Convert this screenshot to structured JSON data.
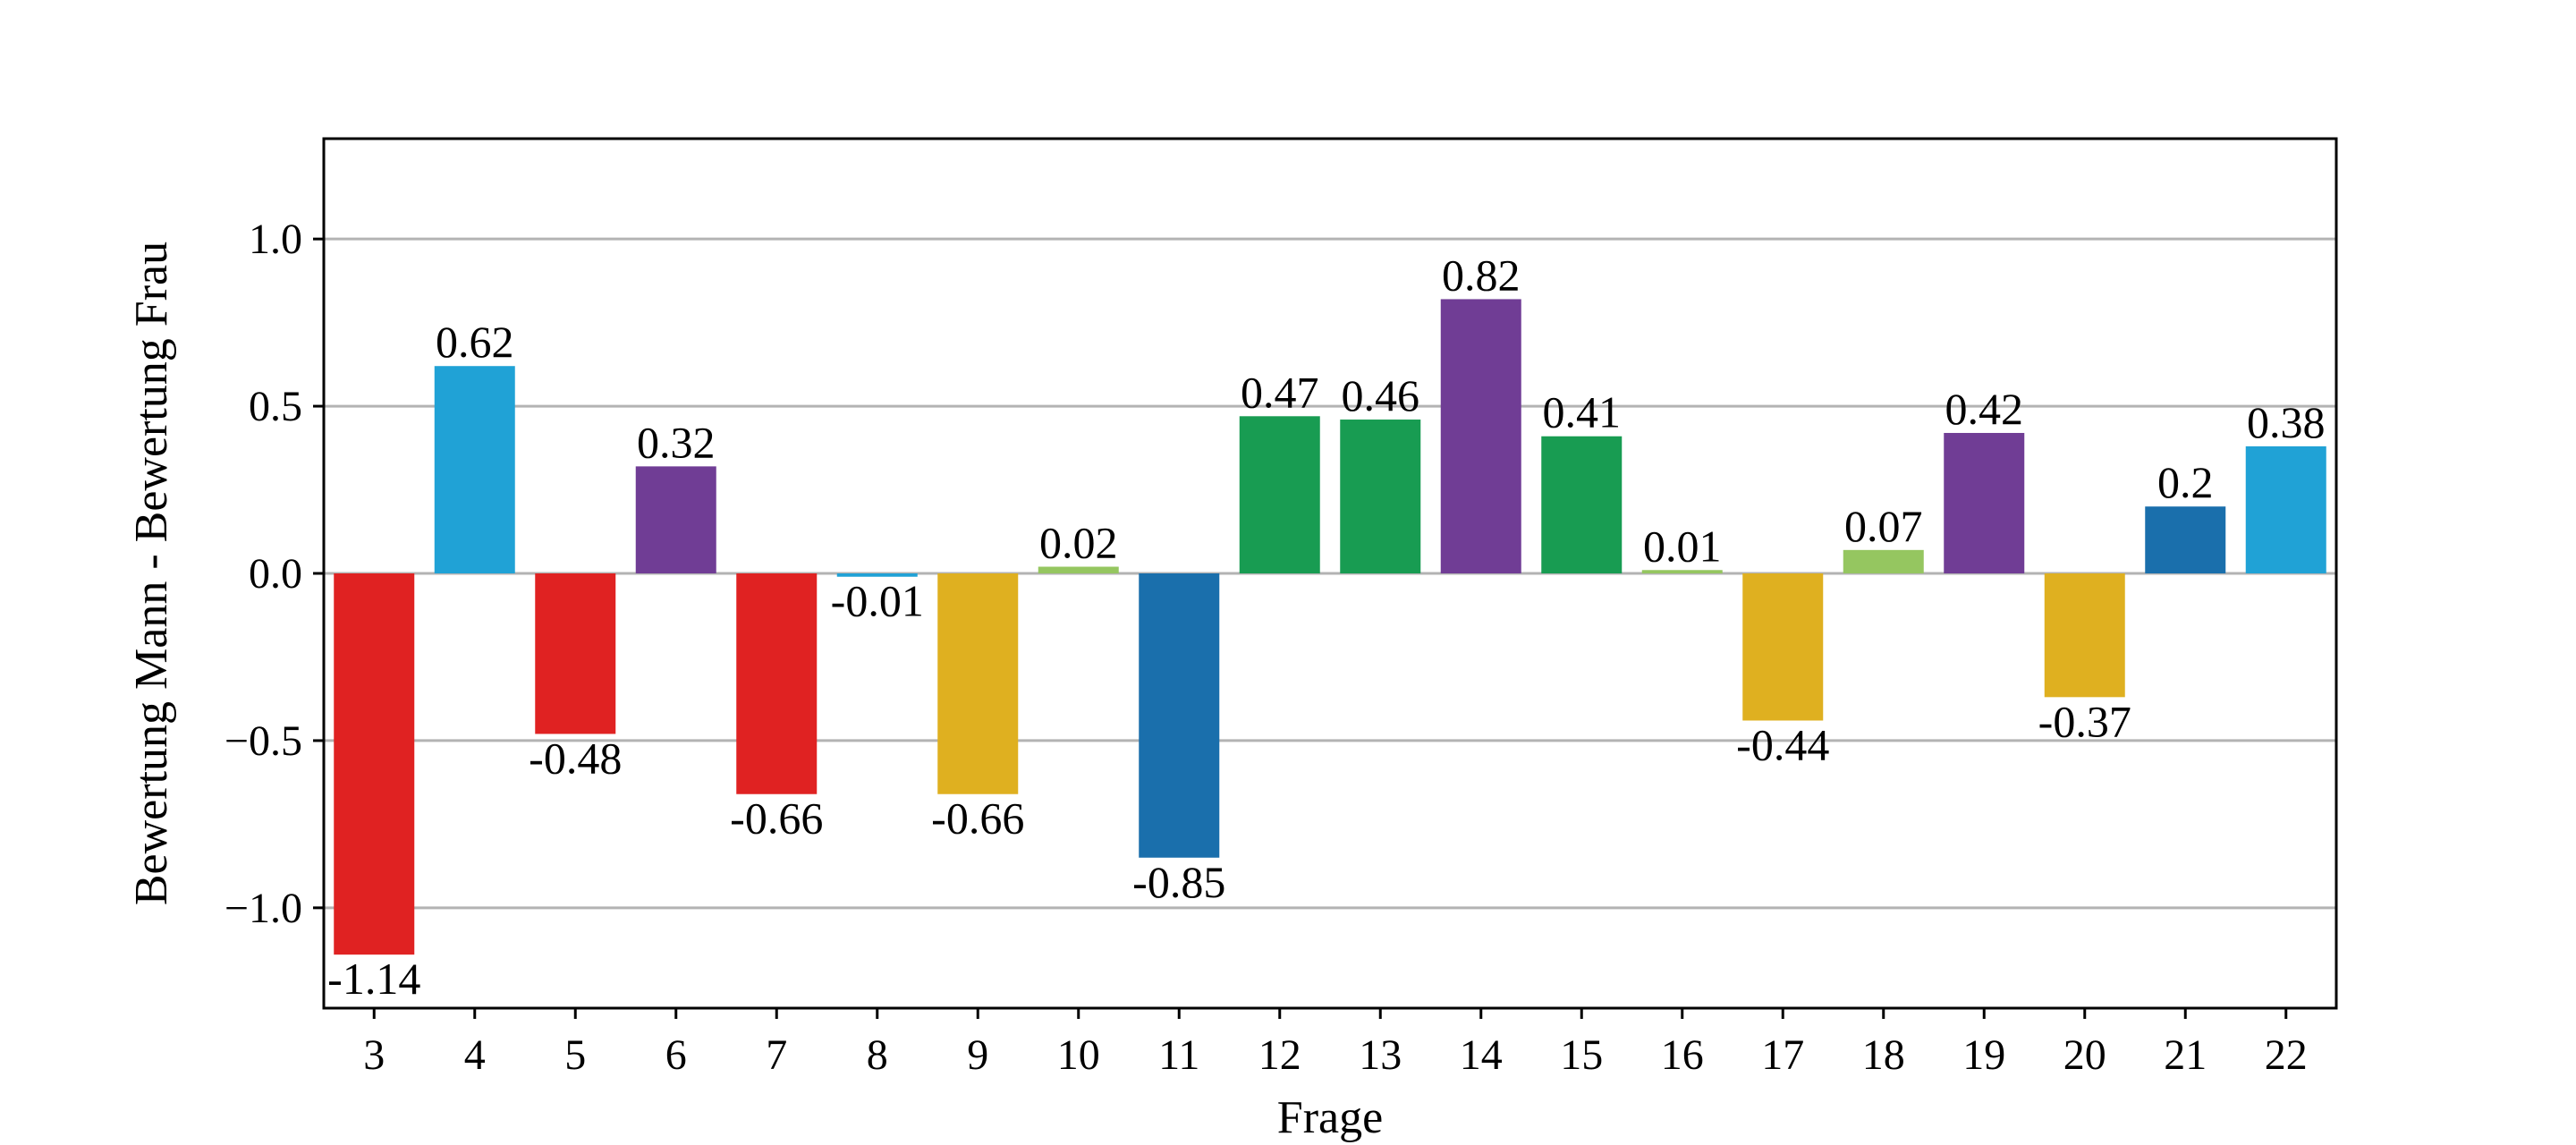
{
  "chart_data": {
    "type": "bar",
    "title": "",
    "xlabel": "Frage",
    "ylabel": "Bewertung Mann - Bewertung Frau",
    "ylim": [
      -1.3,
      1.3
    ],
    "yticks": [
      -1.0,
      -0.5,
      0.0,
      0.5,
      1.0
    ],
    "ytick_labels": [
      "−1.0",
      "−0.5",
      "0.0",
      "0.5",
      "1.0"
    ],
    "grid": "horizontal",
    "legend": "none",
    "categories": [
      "3",
      "4",
      "5",
      "6",
      "7",
      "8",
      "9",
      "10",
      "11",
      "12",
      "13",
      "14",
      "15",
      "16",
      "17",
      "18",
      "19",
      "20",
      "21",
      "22"
    ],
    "values": [
      -1.14,
      0.62,
      -0.48,
      0.32,
      -0.66,
      -0.01,
      -0.66,
      0.02,
      -0.85,
      0.47,
      0.46,
      0.82,
      0.41,
      0.01,
      -0.44,
      0.07,
      0.42,
      -0.37,
      0.2,
      0.38
    ],
    "value_labels": [
      "-1.14",
      "0.62",
      "-0.48",
      "0.32",
      "-0.66",
      "-0.01",
      "-0.66",
      "0.02",
      "-0.85",
      "0.47",
      "0.46",
      "0.82",
      "0.41",
      "0.01",
      "-0.44",
      "0.07",
      "0.42",
      "-0.37",
      "0.2",
      "0.38"
    ],
    "colors": [
      "#e02222",
      "#20a2d6",
      "#e02222",
      "#703d95",
      "#e02222",
      "#20a2d6",
      "#dfb020",
      "#95c660",
      "#1a6fac",
      "#189c52",
      "#189c52",
      "#703d95",
      "#189c52",
      "#95c660",
      "#dfb020",
      "#95c660",
      "#703d95",
      "#dfb020",
      "#1a6fac",
      "#20a2d6"
    ]
  }
}
